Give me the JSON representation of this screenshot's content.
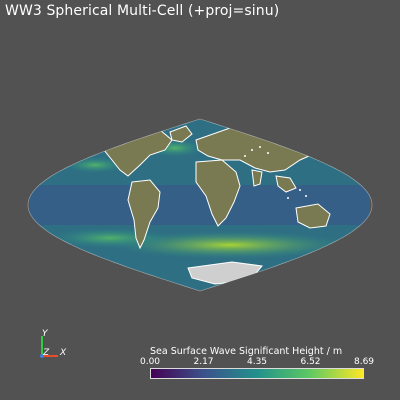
{
  "window": {
    "title": "WW3 Spherical Multi-Cell (+proj=sinu)"
  },
  "axes_widget": {
    "y_label": "Y",
    "z_label": "Z",
    "x_label": "X",
    "colors": {
      "x": "#e84d2a",
      "y": "#2ecc40",
      "z": "#3f7fd6"
    }
  },
  "colorbar": {
    "title": "Sea Surface Wave Significant Height / m",
    "ticks": [
      "0.00",
      "2.17",
      "4.35",
      "6.52",
      "8.69"
    ],
    "range": [
      0.0,
      8.69
    ],
    "colormap": "viridis",
    "stops": [
      "#440154",
      "#3b528b",
      "#21918c",
      "#5ec962",
      "#fde725"
    ]
  },
  "map": {
    "projection": "sinusoidal",
    "ocean_color": "#2f6f83",
    "land_color": "#7a7a52",
    "coast_color": "#ffffff"
  }
}
